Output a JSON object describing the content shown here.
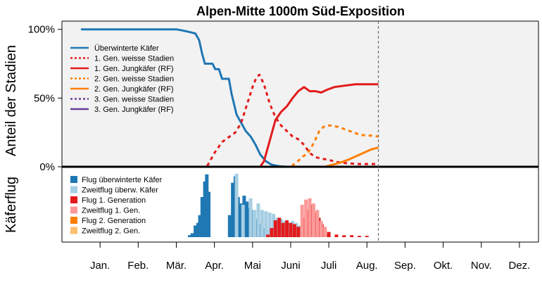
{
  "chart_data": {
    "type": "line",
    "title": "Alpen-Mitte 1000m Süd-Exposition",
    "upper_panel": {
      "ylabel": "Anteil der Stadien",
      "y_ticks": [
        "100%",
        "50%",
        "0%"
      ],
      "ylim": [
        0,
        1.06
      ],
      "background": "#f2f2f2",
      "legend_position": "top-left",
      "series": [
        {
          "name": "Überwinterte Käfer",
          "color": "#1f77b4",
          "dash": "solid",
          "points": [
            [
              0.5,
              1.0
            ],
            [
              3.0,
              1.0
            ],
            [
              3.2,
              0.99
            ],
            [
              3.35,
              0.98
            ],
            [
              3.5,
              0.97
            ],
            [
              3.6,
              0.92
            ],
            [
              3.68,
              0.82
            ],
            [
              3.75,
              0.75
            ],
            [
              3.95,
              0.75
            ],
            [
              4.02,
              0.71
            ],
            [
              4.12,
              0.71
            ],
            [
              4.2,
              0.64
            ],
            [
              4.38,
              0.64
            ],
            [
              4.45,
              0.53
            ],
            [
              4.58,
              0.38
            ],
            [
              4.7,
              0.32
            ],
            [
              4.82,
              0.26
            ],
            [
              4.95,
              0.22
            ],
            [
              5.08,
              0.16
            ],
            [
              5.2,
              0.09
            ],
            [
              5.35,
              0.04
            ],
            [
              5.5,
              0.015
            ],
            [
              5.7,
              0.004
            ],
            [
              5.9,
              0.0
            ],
            [
              8.3,
              0.0
            ]
          ]
        },
        {
          "name": "1. Gen. weisse Stadien",
          "color": "#e31a1c",
          "dash": "dotted",
          "points": [
            [
              0.5,
              0.0
            ],
            [
              3.8,
              0.0
            ],
            [
              4.0,
              0.1
            ],
            [
              4.2,
              0.18
            ],
            [
              4.4,
              0.22
            ],
            [
              4.55,
              0.25
            ],
            [
              4.7,
              0.32
            ],
            [
              4.85,
              0.45
            ],
            [
              5.0,
              0.58
            ],
            [
              5.1,
              0.65
            ],
            [
              5.18,
              0.67
            ],
            [
              5.3,
              0.6
            ],
            [
              5.45,
              0.46
            ],
            [
              5.6,
              0.36
            ],
            [
              5.75,
              0.3
            ],
            [
              5.9,
              0.26
            ],
            [
              6.05,
              0.22
            ],
            [
              6.2,
              0.2
            ],
            [
              6.35,
              0.16
            ],
            [
              6.5,
              0.1
            ],
            [
              6.65,
              0.07
            ],
            [
              6.8,
              0.06
            ],
            [
              7.0,
              0.05
            ],
            [
              7.2,
              0.035
            ],
            [
              7.5,
              0.025
            ],
            [
              7.8,
              0.02
            ],
            [
              8.3,
              0.02
            ]
          ]
        },
        {
          "name": "1. Gen. Jungkäfer (RF)",
          "color": "#e31a1c",
          "dash": "solid",
          "points": [
            [
              0.5,
              0.0
            ],
            [
              5.2,
              0.0
            ],
            [
              5.3,
              0.04
            ],
            [
              5.4,
              0.14
            ],
            [
              5.5,
              0.24
            ],
            [
              5.6,
              0.34
            ],
            [
              5.75,
              0.4
            ],
            [
              5.9,
              0.44
            ],
            [
              6.05,
              0.5
            ],
            [
              6.2,
              0.55
            ],
            [
              6.35,
              0.58
            ],
            [
              6.5,
              0.55
            ],
            [
              6.65,
              0.55
            ],
            [
              6.8,
              0.54
            ],
            [
              6.95,
              0.56
            ],
            [
              7.15,
              0.58
            ],
            [
              7.4,
              0.59
            ],
            [
              7.7,
              0.6
            ],
            [
              8.0,
              0.6
            ],
            [
              8.3,
              0.6
            ]
          ]
        },
        {
          "name": "2. Gen. weisse Stadien",
          "color": "#ff7f00",
          "dash": "dotted",
          "points": [
            [
              0.5,
              0.0
            ],
            [
              6.0,
              0.0
            ],
            [
              6.15,
              0.03
            ],
            [
              6.3,
              0.07
            ],
            [
              6.45,
              0.1
            ],
            [
              6.6,
              0.17
            ],
            [
              6.75,
              0.26
            ],
            [
              6.9,
              0.3
            ],
            [
              7.05,
              0.3
            ],
            [
              7.25,
              0.29
            ],
            [
              7.45,
              0.27
            ],
            [
              7.65,
              0.25
            ],
            [
              7.85,
              0.23
            ],
            [
              8.0,
              0.23
            ],
            [
              8.3,
              0.22
            ]
          ]
        },
        {
          "name": "2. Gen. Jungkäfer (RF)",
          "color": "#ff7f00",
          "dash": "solid",
          "points": [
            [
              0.5,
              0.0
            ],
            [
              6.9,
              0.0
            ],
            [
              7.1,
              0.015
            ],
            [
              7.3,
              0.03
            ],
            [
              7.5,
              0.05
            ],
            [
              7.7,
              0.075
            ],
            [
              7.9,
              0.1
            ],
            [
              8.1,
              0.125
            ],
            [
              8.3,
              0.14
            ]
          ]
        },
        {
          "name": "3. Gen. weisse Stadien",
          "color": "#6a3d9a",
          "dash": "dotted",
          "points": [
            [
              0.5,
              0.0
            ],
            [
              8.3,
              0.0
            ]
          ]
        },
        {
          "name": "3. Gen. Jungkäfer (RF)",
          "color": "#6a3d9a",
          "dash": "solid",
          "points": [
            [
              0.5,
              0.0
            ],
            [
              8.3,
              0.0
            ]
          ]
        }
      ]
    },
    "lower_panel": {
      "ylabel": "Käferflug",
      "type": "bar",
      "background": "#ffffff",
      "legend_position": "top-left",
      "series": [
        {
          "name": "Flug überwinterte Käfer",
          "color": "#1f78b4",
          "points": [
            [
              3.35,
              0.03
            ],
            [
              3.42,
              0.06
            ],
            [
              3.5,
              0.18
            ],
            [
              3.57,
              0.22
            ],
            [
              3.62,
              0.34
            ],
            [
              3.68,
              0.62
            ],
            [
              3.75,
              0.86
            ],
            [
              3.8,
              0.97
            ],
            [
              3.85,
              0.7
            ],
            [
              4.4,
              0.34
            ],
            [
              4.48,
              0.84
            ],
            [
              4.55,
              0.94
            ],
            [
              4.62,
              0.62
            ],
            [
              4.7,
              0.52
            ],
            [
              4.78,
              0.64
            ],
            [
              4.85,
              0.55
            ],
            [
              4.92,
              0.45
            ],
            [
              5.0,
              0.42
            ],
            [
              5.1,
              0.28
            ],
            [
              5.2,
              0.2
            ],
            [
              5.3,
              0.14
            ],
            [
              5.45,
              0.11
            ],
            [
              5.6,
              0.09
            ],
            [
              5.8,
              0.06
            ],
            [
              6.0,
              0.05
            ],
            [
              6.3,
              0.03
            ],
            [
              6.5,
              0.02
            ]
          ]
        },
        {
          "name": "Zweitflug überw. Käfer",
          "color": "#a6cee3",
          "points": [
            [
              4.58,
              0.98
            ],
            [
              4.75,
              0.5
            ],
            [
              4.95,
              0.6
            ],
            [
              5.05,
              0.42
            ],
            [
              5.15,
              0.52
            ],
            [
              5.25,
              0.42
            ],
            [
              5.35,
              0.4
            ],
            [
              5.45,
              0.38
            ],
            [
              5.55,
              0.36
            ],
            [
              5.65,
              0.3
            ],
            [
              5.75,
              0.28
            ],
            [
              5.85,
              0.25
            ],
            [
              5.95,
              0.22
            ],
            [
              6.05,
              0.25
            ],
            [
              6.15,
              0.22
            ],
            [
              6.25,
              0.18
            ],
            [
              6.4,
              0.15
            ],
            [
              6.55,
              0.12
            ],
            [
              6.7,
              0.1
            ],
            [
              6.85,
              0.07
            ],
            [
              7.0,
              0.05
            ]
          ]
        },
        {
          "name": "Flug 1. Generation",
          "color": "#e31a1c",
          "points": [
            [
              5.4,
              0.04
            ],
            [
              5.5,
              0.14
            ],
            [
              5.6,
              0.26
            ],
            [
              5.7,
              0.3
            ],
            [
              5.8,
              0.22
            ],
            [
              5.9,
              0.26
            ],
            [
              6.0,
              0.22
            ],
            [
              6.1,
              0.2
            ],
            [
              6.2,
              0.16
            ],
            [
              6.3,
              0.14
            ],
            [
              6.35,
              0.3
            ],
            [
              6.42,
              0.42
            ],
            [
              6.5,
              0.44
            ],
            [
              6.58,
              0.5
            ],
            [
              6.66,
              0.38
            ],
            [
              6.74,
              0.3
            ],
            [
              6.82,
              0.2
            ],
            [
              6.9,
              0.12
            ],
            [
              7.0,
              0.08
            ],
            [
              7.2,
              0.04
            ],
            [
              7.4,
              0.03
            ],
            [
              7.6,
              0.03
            ],
            [
              7.8,
              0.02
            ],
            [
              8.0,
              0.02
            ]
          ]
        },
        {
          "name": "Zweitflug 1. Gen.",
          "color": "#fb9a99",
          "points": [
            [
              6.3,
              0.5
            ],
            [
              6.4,
              0.58
            ],
            [
              6.5,
              0.6
            ],
            [
              6.6,
              0.52
            ],
            [
              6.7,
              0.42
            ],
            [
              6.8,
              0.25
            ],
            [
              6.9,
              0.16
            ]
          ]
        },
        {
          "name": "Flug 2. Generation",
          "color": "#ff7f00",
          "points": []
        },
        {
          "name": "Zweitflug 2. Gen.",
          "color": "#fdbf6f",
          "points": []
        }
      ]
    },
    "x_axis": {
      "months": [
        "Jan.",
        "Feb.",
        "Mär.",
        "Apr.",
        "Mai",
        "Juni",
        "Juli",
        "Aug.",
        "Sep.",
        "Okt.",
        "Nov.",
        "Dez."
      ],
      "xlim": [
        0,
        12.5
      ]
    },
    "annotations": [
      {
        "type": "vline",
        "x": 8.3,
        "style": "dashed",
        "color": "#707070"
      }
    ]
  }
}
